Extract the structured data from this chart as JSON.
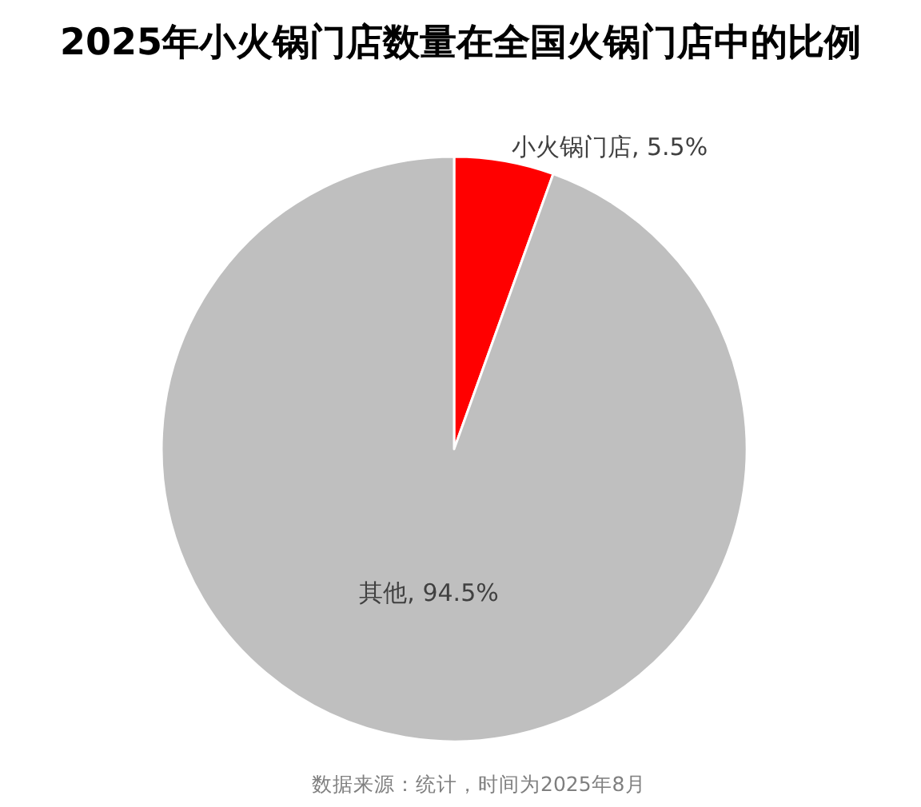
{
  "chart_data": {
    "type": "pie",
    "title": "2025年小火锅门店数量在全国火锅门店中的比例",
    "categories": [
      "小火锅门店",
      "其他"
    ],
    "values": [
      5.5,
      94.5
    ],
    "colors": [
      "#ff0000",
      "#bfbfbf"
    ],
    "value_labels": [
      "5.5%",
      "94.5%"
    ],
    "annotations": [
      "数据来源：统计，时间为2025年8月"
    ]
  }
}
